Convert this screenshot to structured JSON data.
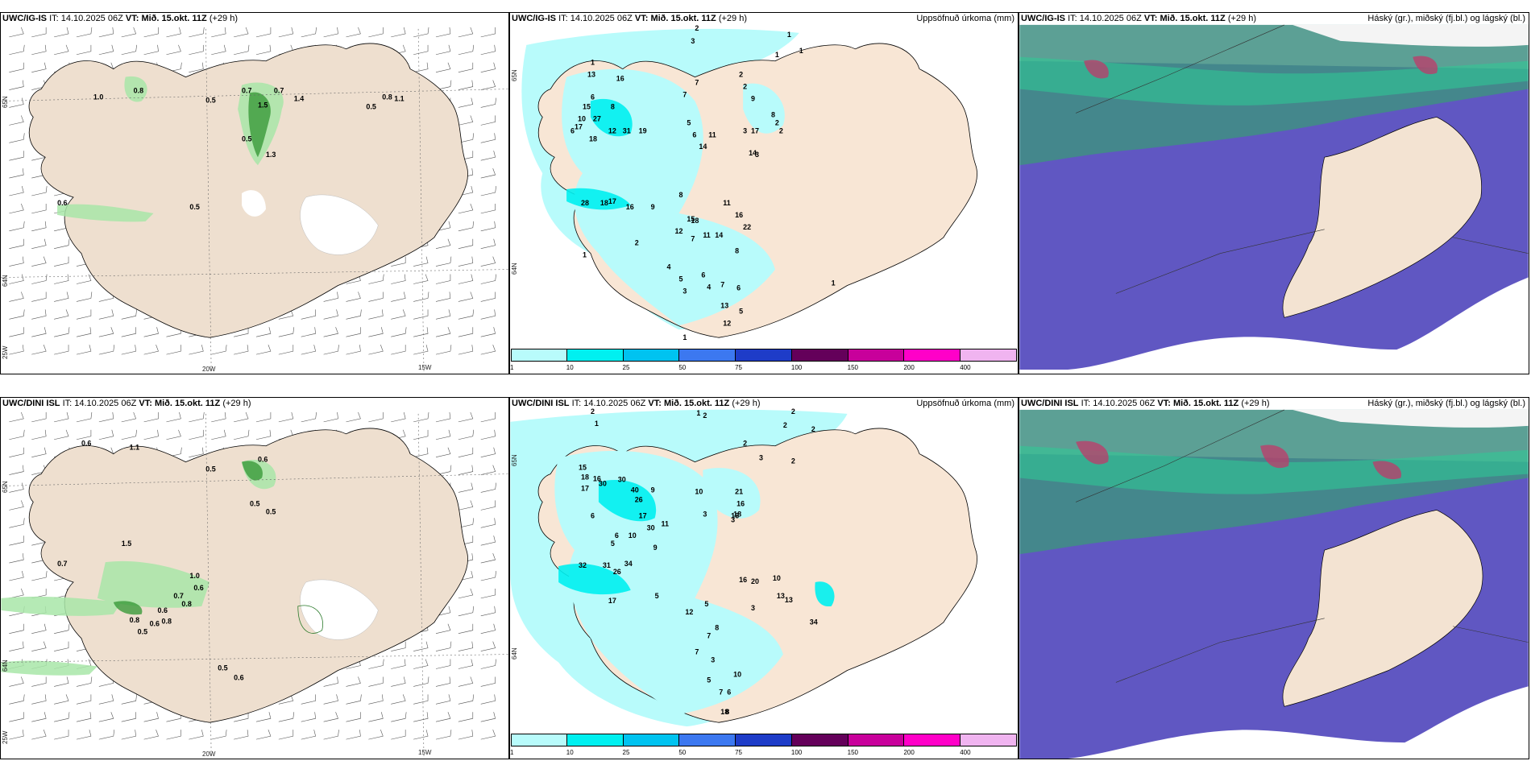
{
  "rows": [
    {
      "panels": [
        {
          "model": "UWC/IG-IS",
          "it_label": "IT:",
          "it_value": "14.10.2025 06Z",
          "vt_label": "VT:",
          "vt_value": "Mið. 15.okt. 11Z",
          "lead": "(+29 h)",
          "right_title": ""
        },
        {
          "model": "UWC/IG-IS",
          "it_label": "IT:",
          "it_value": "14.10.2025 06Z",
          "vt_label": "VT:",
          "vt_value": "Mið. 15.okt. 11Z",
          "lead": "(+29 h)",
          "right_title": "Uppsöfnuð úrkoma (mm)"
        },
        {
          "model": "UWC/IG-IS",
          "it_label": "IT:",
          "it_value": "14.10.2025 06Z",
          "vt_label": "VT:",
          "vt_value": "Mið. 15.okt. 11Z",
          "lead": "(+29 h)",
          "right_title": "Háský (gr.), miðský (fj.bl.) og lágský (bl.)"
        }
      ],
      "precip_labels": [
        "2",
        "3",
        "1",
        "1",
        "1",
        "2",
        "2",
        "1",
        "13",
        "16",
        "6",
        "15",
        "8",
        "10",
        "12",
        "27",
        "6",
        "31",
        "19",
        "17",
        "18",
        "7",
        "7",
        "9",
        "17",
        "5",
        "14",
        "3",
        "8",
        "2",
        "6",
        "14",
        "11",
        "3",
        "2",
        "28",
        "18",
        "17",
        "8",
        "16",
        "9",
        "16",
        "15",
        "18",
        "12",
        "11",
        "14",
        "22",
        "11",
        "8",
        "7",
        "4",
        "5",
        "6",
        "4",
        "2",
        "1",
        "7",
        "13",
        "12",
        "6",
        "3",
        "5",
        "1",
        "1"
      ],
      "wind_precip_labels": [
        "1.0",
        "0.8",
        "0.5",
        "0.7",
        "1.5",
        "0.7",
        "1.4",
        "0.5",
        "0.8",
        "1.1",
        "0.5",
        "0.6",
        "0.5",
        "1.3"
      ]
    },
    {
      "panels": [
        {
          "model": "UWC/DINI ISL",
          "it_label": "IT:",
          "it_value": "14.10.2025 06Z",
          "vt_label": "VT:",
          "vt_value": "Mið. 15.okt. 11Z",
          "lead": "(+29 h)",
          "right_title": ""
        },
        {
          "model": "UWC/DINI ISL",
          "it_label": "IT:",
          "it_value": "14.10.2025 06Z",
          "vt_label": "VT:",
          "vt_value": "Mið. 15.okt. 11Z",
          "lead": "(+29 h)",
          "right_title": "Uppsöfnuð úrkoma (mm)"
        },
        {
          "model": "UWC/DINI ISL",
          "it_label": "IT:",
          "it_value": "14.10.2025 06Z",
          "vt_label": "VT:",
          "vt_value": "Mið. 15.okt. 11Z",
          "lead": "(+29 h)",
          "right_title": "Háský (gr.), miðský (fj.bl.) og lágský (bl.)"
        }
      ],
      "precip_labels": [
        "2",
        "1",
        "1",
        "2",
        "2",
        "2",
        "2",
        "2",
        "2",
        "3",
        "15",
        "18",
        "16",
        "17",
        "30",
        "40",
        "30",
        "26",
        "17",
        "9",
        "21",
        "16",
        "18",
        "3",
        "6",
        "10",
        "3",
        "5",
        "6",
        "16",
        "30",
        "11",
        "10",
        "32",
        "31",
        "34",
        "26",
        "9",
        "17",
        "5",
        "13",
        "5",
        "3",
        "16",
        "20",
        "10",
        "13",
        "34",
        "12",
        "8",
        "7",
        "7",
        "5",
        "6",
        "3",
        "18",
        "7",
        "8",
        "10"
      ],
      "wind_precip_labels": [
        "0.6",
        "1.1",
        "0.5",
        "0.6",
        "0.5",
        "0.5",
        "1.5",
        "0.7",
        "1.0",
        "0.6",
        "0.7",
        "0.8",
        "0.6",
        "0.8",
        "0.6",
        "0.8",
        "0.5",
        "0.5",
        "0.6"
      ]
    }
  ],
  "colorbar": {
    "ticks": [
      "1",
      "10",
      "25",
      "50",
      "75",
      "100",
      "150",
      "200",
      "400"
    ],
    "colors": [
      "#b8fbfb",
      "#00f0f0",
      "#00c3f0",
      "#3c78f0",
      "#1e3cc8",
      "#64005a",
      "#c8009b",
      "#ff00c8",
      "#f0b4f0"
    ]
  },
  "axes": {
    "lon_labels": [
      "20W",
      "15W"
    ],
    "lat_labels": [
      "65N",
      "64N",
      "25W"
    ]
  }
}
